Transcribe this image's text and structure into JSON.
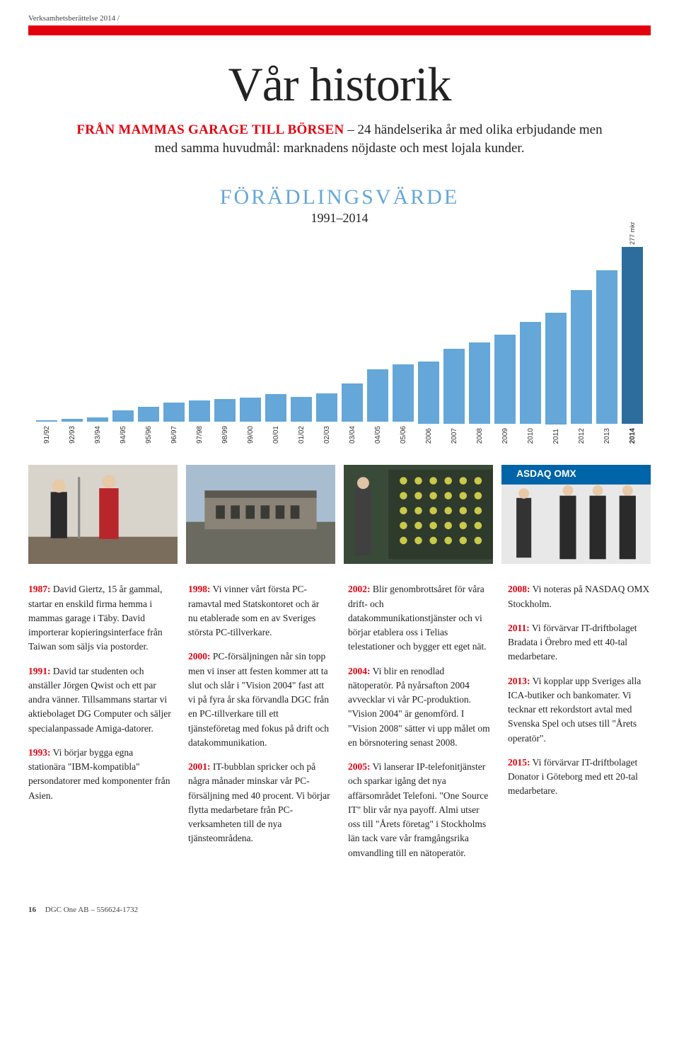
{
  "running_head": "Verksamhetsberättelse 2014 /",
  "title": "Vår historik",
  "subtitle": {
    "lead": "FRÅN MAMMAS GARAGE TILL BÖRSEN",
    "rest": " – 24 händelserika år med olika erbjudande men med samma huvudmål: marknadens nöjdaste och mest lojala kunder."
  },
  "chart": {
    "title": "FÖRÄDLINGSVÄRDE",
    "range": "1991–2014",
    "type": "bar",
    "bar_color": "#64a7d8",
    "last_bar_color": "#2d6d9e",
    "background_color": "#ffffff",
    "max_value": 277,
    "top_label": "277 mkr",
    "axis_font_family": "Arial",
    "axis_font_size": 10,
    "categories": [
      "91/92",
      "92/93",
      "93/94",
      "94/95",
      "95/96",
      "96/97",
      "97/98",
      "98/99",
      "99/00",
      "00/01",
      "01/02",
      "02/03",
      "03/04",
      "04/05",
      "05/06",
      "2006",
      "2007",
      "2008",
      "2009",
      "2010",
      "2011",
      "2012",
      "2013",
      "2014"
    ],
    "values": [
      3,
      5,
      7,
      18,
      24,
      30,
      33,
      36,
      38,
      43,
      39,
      45,
      60,
      82,
      90,
      98,
      118,
      128,
      140,
      160,
      175,
      210,
      240,
      277
    ]
  },
  "timeline": {
    "c1": {
      "p1": {
        "y": "1987:",
        "t": " David Giertz, 15 år gammal, startar en enskild firma hemma i mammas garage i Täby. David importerar kopieringsinterface från Taiwan som säljs via postorder."
      },
      "p2": {
        "y": "1991:",
        "t": " David tar studenten och anställer Jörgen Qwist och ett par andra vänner. Tillsammans startar vi aktiebolaget DG Computer och säljer specialanpassade Amiga-datorer."
      },
      "p3": {
        "y": "1993:",
        "t": " Vi börjar bygga egna stationära \"IBM-kompatibla\" persondatorer med komponenter från Asien."
      }
    },
    "c2": {
      "p1": {
        "y": "1998:",
        "t": " Vi vinner vårt första PC-ramavtal med Statskontoret och är nu etablerade som en av Sveriges största PC-tillverkare."
      },
      "p2": {
        "y": "2000:",
        "t": " PC-försäljningen når sin topp men vi inser att festen kommer att ta slut och slår i \"Vision 2004\" fast att vi på fyra år ska förvandla DGC från en PC-tillverkare till ett tjänsteföretag med fokus på drift och datakommunikation."
      },
      "p3": {
        "y": "2001:",
        "t": " IT-bubblan spricker och på några månader minskar vår PC-försäljning med 40 procent. Vi börjar flytta medarbetare från PC-verksamheten till de nya tjänsteområdena."
      }
    },
    "c3": {
      "p1": {
        "y": "2002:",
        "t": " Blir genombrottsåret för våra drift- och datakommunikationstjänster och vi börjar etablera oss i Telias telestationer och bygger ett eget nät."
      },
      "p2": {
        "y": "2004:",
        "t": " Vi blir en renodlad nätoperatör. På nyårsafton 2004 avvecklar vi vår PC-produktion. \"Vision 2004\" är genomförd. I \"Vision 2008\" sätter vi upp målet om en börsnotering senast 2008."
      },
      "p3": {
        "y": "2005:",
        "t": " Vi lanserar IP-telefonitjänster och sparkar igång det nya affärsområdet Telefoni. \"One Source IT\" blir vår nya payoff. Almi utser oss till \"Årets företag\" i Stockholms län tack vare vår framgångsrika omvandling till en nätoperatör."
      }
    },
    "c4": {
      "p1": {
        "y": "2008:",
        "t": " Vi noteras på NASDAQ OMX Stockholm."
      },
      "p2": {
        "y": "2011:",
        "t": " Vi förvärvar IT-driftbolaget Bradata i Örebro med ett 40-tal medarbetare."
      },
      "p3": {
        "y": "2013:",
        "t": " Vi kopplar upp Sveriges alla ICA-butiker och bankomater. Vi tecknar ett rekordstort avtal med Svenska Spel och utses till \"Årets operatör\"."
      },
      "p4": {
        "y": "2015:",
        "t": " Vi förvärvar IT-driftbolaget Donator i Göteborg med ett 20-tal medarbetare."
      }
    }
  },
  "footer": {
    "page": "16",
    "text": "DGC One AB – 556624-1732"
  }
}
